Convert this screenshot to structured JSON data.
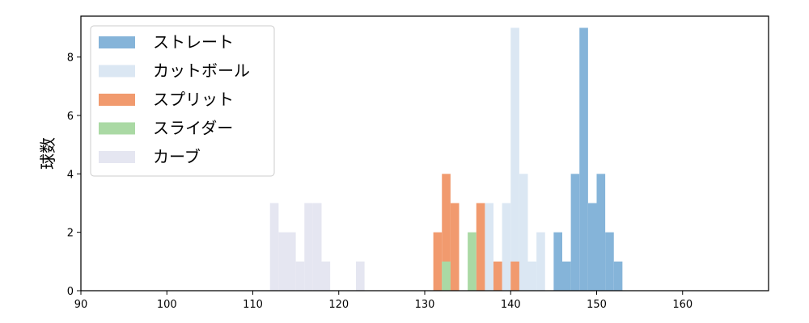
{
  "chart_data": {
    "type": "histogram",
    "xlabel": "",
    "ylabel": "球数",
    "xlim": [
      90,
      170
    ],
    "ylim": [
      0,
      9.4
    ],
    "x_ticks": [
      90,
      100,
      110,
      120,
      130,
      140,
      150,
      160
    ],
    "y_ticks": [
      0,
      2,
      4,
      6,
      8
    ],
    "grid": false,
    "legend_position": "top-left",
    "series": [
      {
        "name": "カーブ",
        "color": "#e5e6f1",
        "bins": [
          {
            "x0": 112,
            "x1": 113,
            "count": 3
          },
          {
            "x0": 113,
            "x1": 114,
            "count": 2
          },
          {
            "x0": 114,
            "x1": 115,
            "count": 2
          },
          {
            "x0": 115,
            "x1": 116,
            "count": 1
          },
          {
            "x0": 116,
            "x1": 117,
            "count": 3
          },
          {
            "x0": 117,
            "x1": 118,
            "count": 3
          },
          {
            "x0": 118,
            "x1": 119,
            "count": 1
          },
          {
            "x0": 122,
            "x1": 123,
            "count": 1
          }
        ]
      },
      {
        "name": "カットボール",
        "color": "#dbe7f3",
        "bins": [
          {
            "x0": 136,
            "x1": 137,
            "count": 1
          },
          {
            "x0": 137,
            "x1": 138,
            "count": 3
          },
          {
            "x0": 139,
            "x1": 140,
            "count": 3
          },
          {
            "x0": 140,
            "x1": 141,
            "count": 9
          },
          {
            "x0": 141,
            "x1": 142,
            "count": 4
          },
          {
            "x0": 142,
            "x1": 143,
            "count": 1
          },
          {
            "x0": 143,
            "x1": 144,
            "count": 2
          }
        ]
      },
      {
        "name": "ストレート",
        "color": "#85b4d9",
        "bins": [
          {
            "x0": 145,
            "x1": 146,
            "count": 2
          },
          {
            "x0": 146,
            "x1": 147,
            "count": 1
          },
          {
            "x0": 147,
            "x1": 148,
            "count": 4
          },
          {
            "x0": 148,
            "x1": 149,
            "count": 9
          },
          {
            "x0": 149,
            "x1": 150,
            "count": 3
          },
          {
            "x0": 150,
            "x1": 151,
            "count": 4
          },
          {
            "x0": 151,
            "x1": 152,
            "count": 2
          },
          {
            "x0": 152,
            "x1": 153,
            "count": 1
          }
        ]
      },
      {
        "name": "スプリット",
        "color": "#f19a6e",
        "bins": [
          {
            "x0": 131,
            "x1": 132,
            "count": 2
          },
          {
            "x0": 132,
            "x1": 133,
            "count": 4
          },
          {
            "x0": 133,
            "x1": 134,
            "count": 3
          },
          {
            "x0": 136,
            "x1": 137,
            "count": 3
          },
          {
            "x0": 138,
            "x1": 139,
            "count": 1
          },
          {
            "x0": 140,
            "x1": 141,
            "count": 1
          }
        ]
      },
      {
        "name": "スライダー",
        "color": "#aad9a4",
        "bins": [
          {
            "x0": 132,
            "x1": 133,
            "count": 1
          },
          {
            "x0": 135,
            "x1": 136,
            "count": 2
          }
        ]
      }
    ],
    "legend": [
      {
        "label": "ストレート",
        "color": "#85b4d9"
      },
      {
        "label": "カットボール",
        "color": "#dbe7f3"
      },
      {
        "label": "スプリット",
        "color": "#f19a6e"
      },
      {
        "label": "スライダー",
        "color": "#aad9a4"
      },
      {
        "label": "カーブ",
        "color": "#e5e6f1"
      }
    ]
  }
}
